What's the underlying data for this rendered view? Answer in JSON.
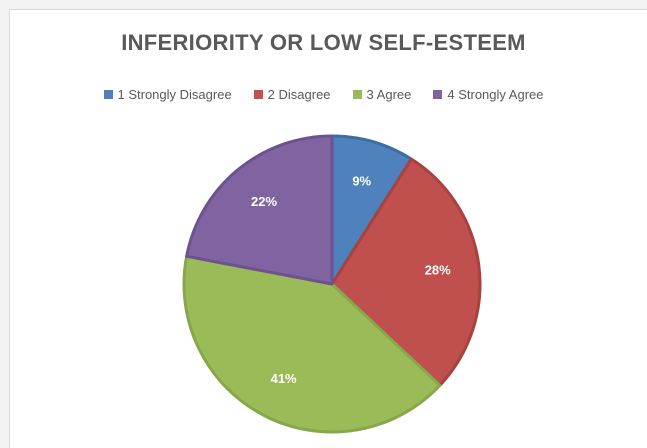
{
  "chart_data": {
    "type": "pie",
    "title": "INFERIORITY OR LOW SELF-ESTEEM",
    "legend_position": "top",
    "categories": [
      "1 Strongly Disagree",
      "2 Disagree",
      "3 Agree",
      "4 Strongly Agree"
    ],
    "values": [
      9,
      28,
      41,
      22
    ],
    "value_labels": [
      "9%",
      "28%",
      "41%",
      "22%"
    ],
    "colors": [
      "#4f81bd",
      "#c0504d",
      "#9bbb59",
      "#8064a2"
    ]
  }
}
